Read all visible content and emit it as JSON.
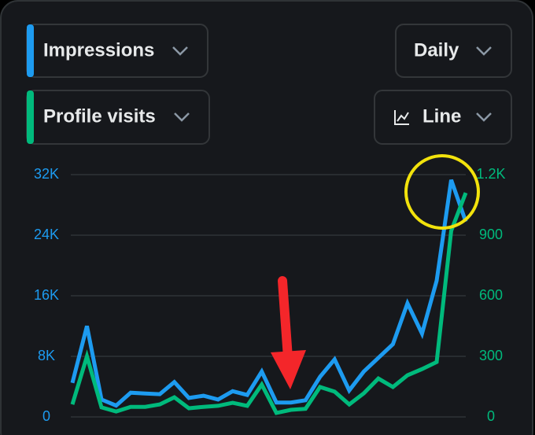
{
  "controls": {
    "metric_primary": "Impressions",
    "interval": "Daily",
    "metric_secondary": "Profile visits",
    "chart_style": "Line"
  },
  "chart_data": {
    "type": "line",
    "series": [
      {
        "name": "Impressions",
        "color": "#1d9bf0",
        "axis": "y",
        "values": [
          4500,
          12000,
          2300,
          1500,
          3200,
          3100,
          3000,
          4600,
          2500,
          2800,
          2300,
          3400,
          2900,
          6000,
          1900,
          1900,
          2200,
          5300,
          7600,
          3500,
          6000,
          7800,
          9600,
          15000,
          11000,
          18000,
          31300,
          25800
        ]
      },
      {
        "name": "Profile visits",
        "color": "#00ba7c",
        "axis": "y2",
        "values": [
          62,
          300,
          47,
          27,
          50,
          50,
          62,
          97,
          43,
          50,
          55,
          70,
          55,
          160,
          20,
          35,
          40,
          148,
          125,
          62,
          117,
          190,
          148,
          206,
          237,
          272,
          922,
          1110
        ]
      }
    ],
    "ylim": [
      0,
      32000
    ],
    "yticks": [
      0,
      {
        "value": 8000,
        "label": "8K"
      },
      {
        "value": 16000,
        "label": "16K"
      },
      {
        "value": 24000,
        "label": "24K"
      },
      {
        "value": 32000,
        "label": "32K"
      }
    ],
    "y2lim": [
      0,
      1200
    ],
    "y2ticks": [
      0,
      300,
      600,
      900,
      {
        "value": 1200,
        "label": "1.2K"
      }
    ],
    "grid": true
  }
}
